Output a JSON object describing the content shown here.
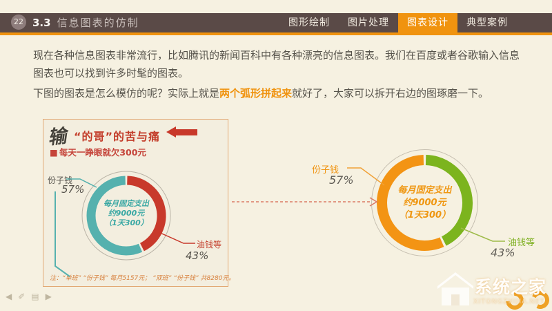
{
  "header": {
    "slide_number": "22",
    "section_number": "3.3",
    "title": "信息图表的仿制",
    "tabs": [
      {
        "label": "图形绘制",
        "active": false
      },
      {
        "label": "图片处理",
        "active": false
      },
      {
        "label": "图表设计",
        "active": true
      },
      {
        "label": "典型案例",
        "active": false
      }
    ],
    "colors": {
      "bar": "#5a4a47",
      "accent": "#f0930f",
      "badge": "#8e7d7c"
    }
  },
  "body": {
    "p1": "现在各种信息图表非常流行，比如腾讯的新闻百科中有各种漂亮的信息图表。我们在百度或者谷歌输入信息图表也可以找到许多时髦的图表。",
    "p2_before": "下图的图表是怎么模仿的呢？实际上就是",
    "p2_highlight": "两个弧形拼起来",
    "p2_after": "就好了，大家可以拆开右边的图琢磨一下。"
  },
  "chart_data": [
    {
      "id": "original-infographic",
      "type": "pie",
      "variant": "donut",
      "brush_char": "输",
      "title": "“的哥”的苦与痛",
      "subtitle_bullet": "■",
      "subtitle": "每天一睁眼就欠300元",
      "labels": [
        "份子钱",
        "油钱等"
      ],
      "values": [
        57,
        43
      ],
      "pct": [
        "57%",
        "43%"
      ],
      "colors": [
        "#55b1ae",
        "#c8392b"
      ],
      "center_lines": [
        "每月固定支出",
        "约9000元",
        "（1天300）"
      ],
      "note": "注：“单班” “份子钱” 每月5157元； “双班” “份子钱” 共8280元。",
      "legend_position": "callout"
    },
    {
      "id": "recreated-chart",
      "type": "pie",
      "variant": "donut",
      "labels": [
        "份子钱",
        "油钱等"
      ],
      "values": [
        57,
        43
      ],
      "pct": [
        "57%",
        "43%"
      ],
      "colors": [
        "#f39414",
        "#7cb41e"
      ],
      "center_lines": [
        "每月固定支出",
        "约9000元",
        "（1天300）"
      ],
      "legend_position": "callout"
    }
  ],
  "footer": {
    "controls": [
      {
        "name": "prev-slide",
        "icon": "◀"
      },
      {
        "name": "pen-tool",
        "icon": "✐"
      },
      {
        "name": "slide-menu",
        "icon": "▤"
      },
      {
        "name": "next-slide",
        "icon": "▶"
      }
    ]
  },
  "watermark": {
    "name": "系统之家",
    "domain": "XITONGZHIJIA.NET"
  }
}
